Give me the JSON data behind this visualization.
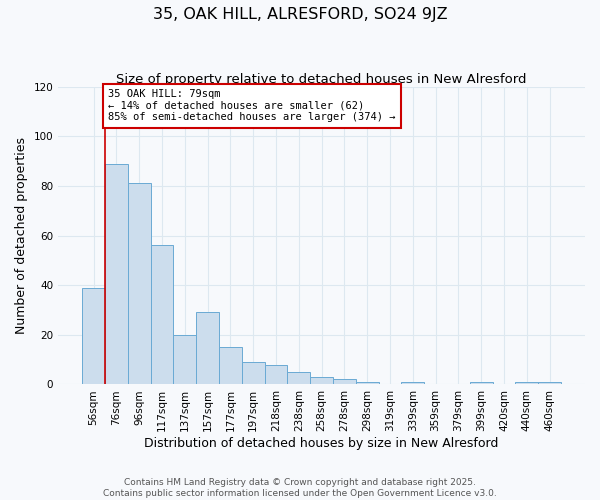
{
  "title": "35, OAK HILL, ALRESFORD, SO24 9JZ",
  "subtitle": "Size of property relative to detached houses in New Alresford",
  "xlabel": "Distribution of detached houses by size in New Alresford",
  "ylabel": "Number of detached properties",
  "bar_color": "#ccdded",
  "bar_edge_color": "#6aaad4",
  "categories": [
    "56sqm",
    "76sqm",
    "96sqm",
    "117sqm",
    "137sqm",
    "157sqm",
    "177sqm",
    "197sqm",
    "218sqm",
    "238sqm",
    "258sqm",
    "278sqm",
    "298sqm",
    "319sqm",
    "339sqm",
    "359sqm",
    "379sqm",
    "399sqm",
    "420sqm",
    "440sqm",
    "460sqm"
  ],
  "values": [
    39,
    89,
    81,
    56,
    20,
    29,
    15,
    9,
    8,
    5,
    3,
    2,
    1,
    0,
    1,
    0,
    0,
    1,
    0,
    1,
    1
  ],
  "ylim": [
    0,
    120
  ],
  "yticks": [
    0,
    20,
    40,
    60,
    80,
    100,
    120
  ],
  "vline_x": 0.5,
  "vline_color": "#cc0000",
  "marker_label": "35 OAK HILL: 79sqm",
  "annotation_line1": "← 14% of detached houses are smaller (62)",
  "annotation_line2": "85% of semi-detached houses are larger (374) →",
  "annotation_box_color": "#ffffff",
  "annotation_box_edge": "#cc0000",
  "footer1": "Contains HM Land Registry data © Crown copyright and database right 2025.",
  "footer2": "Contains public sector information licensed under the Open Government Licence v3.0.",
  "bg_color": "#f7f9fc",
  "grid_color": "#dde8f0",
  "title_fontsize": 11.5,
  "subtitle_fontsize": 9.5,
  "axis_label_fontsize": 9,
  "tick_fontsize": 7.5,
  "footer_fontsize": 6.5
}
